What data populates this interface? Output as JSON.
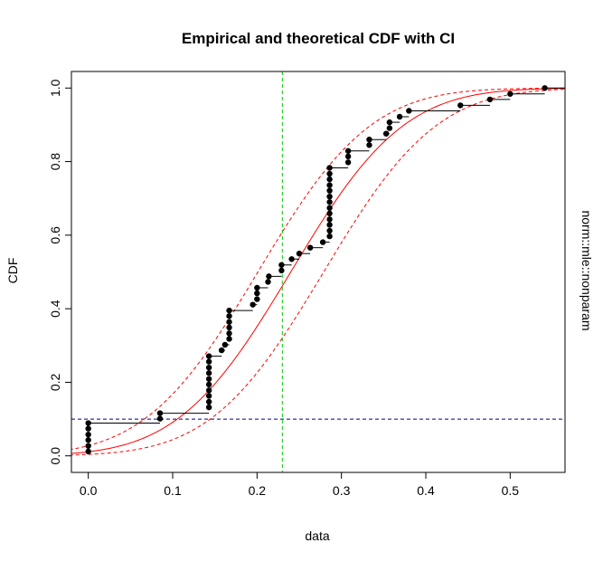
{
  "chart_data": {
    "type": "scatter",
    "title": "Empirical and theoretical CDF with CI",
    "xlabel": "data",
    "ylabel": "CDF",
    "right_label": "norm::mle::nonparam",
    "xlim": [
      -0.02,
      0.565
    ],
    "ylim": [
      -0.045,
      1.045
    ],
    "x_ticks": [
      0.0,
      0.1,
      0.2,
      0.3,
      0.4,
      0.5
    ],
    "x_tick_labels": [
      "0.0",
      "0.1",
      "0.2",
      "0.3",
      "0.4",
      "0.5"
    ],
    "y_ticks": [
      0.0,
      0.2,
      0.4,
      0.6,
      0.8,
      1.0
    ],
    "y_tick_labels": [
      "0.0",
      "0.2",
      "0.4",
      "0.6",
      "0.8",
      "1.0"
    ],
    "grid": false,
    "vertical_line": {
      "x": 0.23,
      "color": "#00cc00",
      "style": "dashed"
    },
    "horizontal_line": {
      "y": 0.1,
      "color": "#000080",
      "style": "dashed"
    },
    "theoretical_cdf": {
      "distribution": "normal",
      "mean": 0.24,
      "sd": 0.105,
      "color": "#ff0000"
    },
    "ci_band": {
      "lower_shift": 0.039,
      "upper_shift": -0.039,
      "color": "#ff0000",
      "style": "dashed"
    },
    "ecdf_points": [
      {
        "x": 0.0,
        "y": 0.012
      },
      {
        "x": 0.0,
        "y": 0.027
      },
      {
        "x": 0.0,
        "y": 0.043
      },
      {
        "x": 0.0,
        "y": 0.058
      },
      {
        "x": 0.0,
        "y": 0.074
      },
      {
        "x": 0.0,
        "y": 0.089
      },
      {
        "x": 0.085,
        "y": 0.101
      },
      {
        "x": 0.085,
        "y": 0.116
      },
      {
        "x": 0.143,
        "y": 0.132
      },
      {
        "x": 0.143,
        "y": 0.147
      },
      {
        "x": 0.143,
        "y": 0.163
      },
      {
        "x": 0.143,
        "y": 0.178
      },
      {
        "x": 0.143,
        "y": 0.194
      },
      {
        "x": 0.143,
        "y": 0.209
      },
      {
        "x": 0.143,
        "y": 0.225
      },
      {
        "x": 0.143,
        "y": 0.24
      },
      {
        "x": 0.143,
        "y": 0.256
      },
      {
        "x": 0.143,
        "y": 0.271
      },
      {
        "x": 0.158,
        "y": 0.287
      },
      {
        "x": 0.162,
        "y": 0.302
      },
      {
        "x": 0.167,
        "y": 0.318
      },
      {
        "x": 0.167,
        "y": 0.333
      },
      {
        "x": 0.167,
        "y": 0.349
      },
      {
        "x": 0.167,
        "y": 0.364
      },
      {
        "x": 0.167,
        "y": 0.38
      },
      {
        "x": 0.167,
        "y": 0.395
      },
      {
        "x": 0.195,
        "y": 0.411
      },
      {
        "x": 0.2,
        "y": 0.426
      },
      {
        "x": 0.2,
        "y": 0.442
      },
      {
        "x": 0.2,
        "y": 0.457
      },
      {
        "x": 0.213,
        "y": 0.473
      },
      {
        "x": 0.214,
        "y": 0.488
      },
      {
        "x": 0.229,
        "y": 0.504
      },
      {
        "x": 0.229,
        "y": 0.519
      },
      {
        "x": 0.241,
        "y": 0.535
      },
      {
        "x": 0.25,
        "y": 0.55
      },
      {
        "x": 0.263,
        "y": 0.566
      },
      {
        "x": 0.278,
        "y": 0.581
      },
      {
        "x": 0.286,
        "y": 0.597
      },
      {
        "x": 0.286,
        "y": 0.612
      },
      {
        "x": 0.286,
        "y": 0.628
      },
      {
        "x": 0.286,
        "y": 0.643
      },
      {
        "x": 0.286,
        "y": 0.659
      },
      {
        "x": 0.286,
        "y": 0.674
      },
      {
        "x": 0.286,
        "y": 0.69
      },
      {
        "x": 0.286,
        "y": 0.705
      },
      {
        "x": 0.286,
        "y": 0.721
      },
      {
        "x": 0.286,
        "y": 0.736
      },
      {
        "x": 0.286,
        "y": 0.752
      },
      {
        "x": 0.286,
        "y": 0.767
      },
      {
        "x": 0.286,
        "y": 0.783
      },
      {
        "x": 0.308,
        "y": 0.798
      },
      {
        "x": 0.308,
        "y": 0.814
      },
      {
        "x": 0.308,
        "y": 0.829
      },
      {
        "x": 0.333,
        "y": 0.845
      },
      {
        "x": 0.333,
        "y": 0.86
      },
      {
        "x": 0.353,
        "y": 0.876
      },
      {
        "x": 0.357,
        "y": 0.891
      },
      {
        "x": 0.357,
        "y": 0.907
      },
      {
        "x": 0.369,
        "y": 0.922
      },
      {
        "x": 0.38,
        "y": 0.938
      },
      {
        "x": 0.441,
        "y": 0.953
      },
      {
        "x": 0.476,
        "y": 0.969
      },
      {
        "x": 0.5,
        "y": 0.984
      },
      {
        "x": 0.541,
        "y": 1.0
      }
    ],
    "colors": {
      "points": "#000000",
      "steps": "#000000",
      "theoretical": "#ff0000",
      "ci": "#ff0000",
      "vline": "#00cc00",
      "hline": "#000080"
    }
  }
}
